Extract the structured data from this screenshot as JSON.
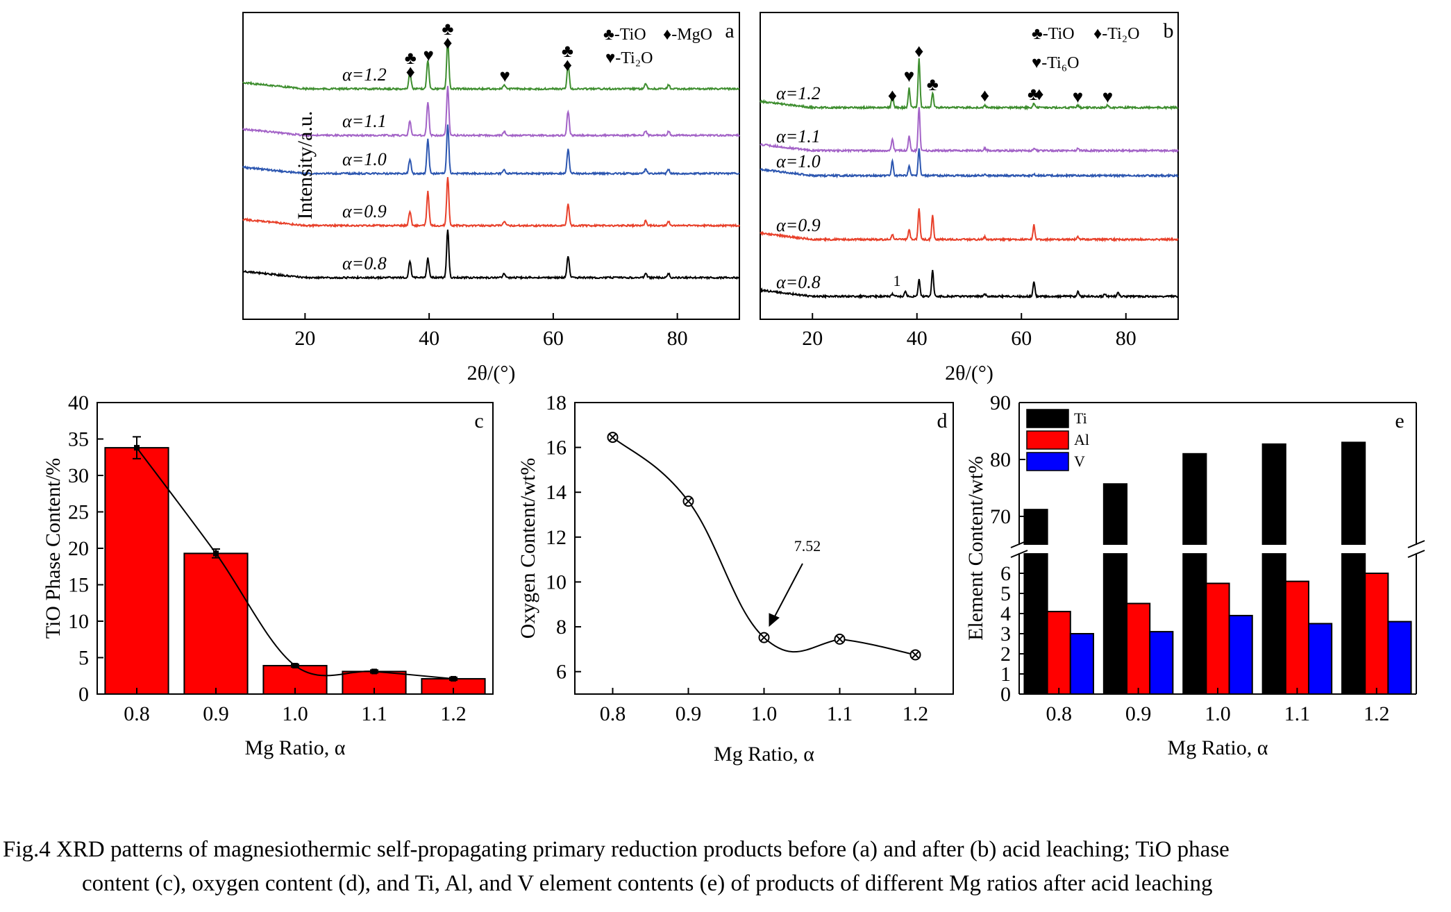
{
  "panels": {
    "a": {
      "letter": "a",
      "legend": [
        {
          "symbol": "♣",
          "text": "-TiO"
        },
        {
          "symbol": "♦",
          "text": "-MgO"
        },
        {
          "symbol": "♥",
          "text": "-Ti₂O"
        }
      ],
      "ylabel": "Intensity/a.u.",
      "xlabel": "2θ/(°)",
      "xticks": [
        "20",
        "40",
        "60",
        "80"
      ],
      "trace_labels": [
        "α=1.2",
        "α=1.1",
        "α=1.0",
        "α=0.9",
        "α=0.8"
      ],
      "peak_markers": [
        "♣",
        "♦",
        "♥",
        "♣",
        "♦",
        "♥",
        "♣",
        "♦"
      ]
    },
    "b": {
      "letter": "b",
      "legend": [
        {
          "symbol": "♣",
          "text": "-TiO"
        },
        {
          "symbol": "♦",
          "text": "-Ti₂O"
        },
        {
          "symbol": "♥",
          "text": "-Ti₆O"
        }
      ],
      "xlabel": "2θ/(°)",
      "xticks": [
        "20",
        "40",
        "60",
        "80"
      ],
      "trace_labels": [
        "α=1.2",
        "α=1.1",
        "α=1.0",
        "α=0.9",
        "α=0.8"
      ],
      "peak_markers": [
        "♦",
        "♥",
        "♦",
        "♣",
        "♦",
        "♣",
        "♦",
        "♥",
        "♥"
      ],
      "annotation": "1"
    },
    "c": {
      "letter": "c",
      "ylabel": "TiO Phase Content/%",
      "xlabel": "Mg Ratio, α",
      "yticks": [
        "0",
        "5",
        "10",
        "15",
        "20",
        "25",
        "30",
        "35",
        "40"
      ],
      "xticks": [
        "0.8",
        "0.9",
        "1.0",
        "1.1",
        "1.2"
      ]
    },
    "d": {
      "letter": "d",
      "ylabel": "Oxygen Content/wt%",
      "xlabel": "Mg Ratio, α",
      "yticks": [
        "6",
        "8",
        "10",
        "12",
        "14",
        "16",
        "18"
      ],
      "xticks": [
        "0.8",
        "0.9",
        "1.0",
        "1.1",
        "1.2"
      ],
      "annotation": "7.52"
    },
    "e": {
      "letter": "e",
      "ylabel": "Element Content/wt%",
      "xlabel": "Mg Ratio, α",
      "yticks_upper": [
        "70",
        "80",
        "90"
      ],
      "yticks_lower": [
        "0",
        "1",
        "2",
        "3",
        "4",
        "5",
        "6"
      ],
      "xticks": [
        "0.8",
        "0.9",
        "1.0",
        "1.1",
        "1.2"
      ],
      "legend": [
        "Ti",
        "Al",
        "V"
      ]
    }
  },
  "colors": {
    "red": "#ff0000",
    "blue": "#0000ff",
    "black": "#000000",
    "trace_a": [
      "#3e8e2f",
      "#a363c7",
      "#2c56b0",
      "#e8402a",
      "#000000"
    ],
    "trace_b": [
      "#3e8e2f",
      "#a363c7",
      "#2c56b0",
      "#e8402a",
      "#000000"
    ]
  },
  "chart_data": [
    {
      "type": "line",
      "panel": "a",
      "title": "",
      "xlabel": "2θ/(°)",
      "ylabel": "Intensity/a.u.",
      "xlim": [
        10,
        90
      ],
      "series": [
        {
          "name": "α=1.2",
          "peaks": [
            [
              36.9,
              0.35
            ],
            [
              39.8,
              0.6
            ],
            [
              43.0,
              1.0
            ],
            [
              52.1,
              0.08
            ],
            [
              62.4,
              0.5
            ],
            [
              74.9,
              0.1
            ],
            [
              78.6,
              0.08
            ]
          ]
        },
        {
          "name": "α=1.1",
          "peaks": [
            [
              36.9,
              0.3
            ],
            [
              39.8,
              0.7
            ],
            [
              43.0,
              1.0
            ],
            [
              52.1,
              0.08
            ],
            [
              62.4,
              0.5
            ],
            [
              74.9,
              0.1
            ],
            [
              78.6,
              0.08
            ]
          ]
        },
        {
          "name": "α=1.0",
          "peaks": [
            [
              36.9,
              0.3
            ],
            [
              39.8,
              0.7
            ],
            [
              43.0,
              1.0
            ],
            [
              52.1,
              0.08
            ],
            [
              62.4,
              0.5
            ],
            [
              74.9,
              0.1
            ],
            [
              78.6,
              0.08
            ]
          ]
        },
        {
          "name": "α=0.9",
          "peaks": [
            [
              36.9,
              0.3
            ],
            [
              39.8,
              0.7
            ],
            [
              43.0,
              1.0
            ],
            [
              52.1,
              0.08
            ],
            [
              62.4,
              0.45
            ],
            [
              74.9,
              0.1
            ],
            [
              78.6,
              0.08
            ]
          ]
        },
        {
          "name": "α=0.8",
          "peaks": [
            [
              36.9,
              0.35
            ],
            [
              39.8,
              0.4
            ],
            [
              43.0,
              1.0
            ],
            [
              52.1,
              0.08
            ],
            [
              62.4,
              0.45
            ],
            [
              74.9,
              0.1
            ],
            [
              78.6,
              0.08
            ]
          ]
        }
      ]
    },
    {
      "type": "line",
      "panel": "b",
      "title": "",
      "xlabel": "2θ/(°)",
      "ylabel": "",
      "xlim": [
        10,
        90
      ],
      "series": [
        {
          "name": "α=1.2",
          "peaks": [
            [
              35.3,
              0.3
            ],
            [
              38.5,
              0.4
            ],
            [
              40.4,
              1.0
            ],
            [
              43.0,
              0.3
            ],
            [
              53.0,
              0.05
            ],
            [
              62.4,
              0.08
            ],
            [
              70.8,
              0.05
            ],
            [
              76.5,
              0.05
            ]
          ]
        },
        {
          "name": "α=1.1",
          "peaks": [
            [
              35.3,
              0.25
            ],
            [
              38.5,
              0.3
            ],
            [
              40.4,
              0.9
            ],
            [
              53.0,
              0.05
            ],
            [
              62.4,
              0.05
            ],
            [
              70.8,
              0.05
            ]
          ]
        },
        {
          "name": "α=1.0",
          "peaks": [
            [
              35.3,
              0.3
            ],
            [
              38.5,
              0.2
            ],
            [
              40.4,
              0.55
            ],
            [
              53.0,
              0.03
            ],
            [
              62.4,
              0.03
            ]
          ]
        },
        {
          "name": "α=0.9",
          "peaks": [
            [
              35.3,
              0.1
            ],
            [
              38.5,
              0.2
            ],
            [
              40.4,
              0.65
            ],
            [
              43.0,
              0.5
            ],
            [
              53.0,
              0.05
            ],
            [
              62.4,
              0.3
            ],
            [
              70.8,
              0.05
            ]
          ]
        },
        {
          "name": "α=0.8",
          "peaks": [
            [
              35.3,
              0.05
            ],
            [
              37.8,
              0.1
            ],
            [
              40.4,
              0.35
            ],
            [
              43.0,
              0.55
            ],
            [
              53.0,
              0.05
            ],
            [
              62.4,
              0.3
            ],
            [
              70.8,
              0.1
            ],
            [
              76.0,
              0.05
            ],
            [
              78.5,
              0.08
            ]
          ]
        }
      ]
    },
    {
      "type": "bar",
      "panel": "c",
      "title": "",
      "xlabel": "Mg Ratio, α",
      "ylabel": "TiO Phase Content/%",
      "categories": [
        "0.8",
        "0.9",
        "1.0",
        "1.1",
        "1.2"
      ],
      "values": [
        33.8,
        19.3,
        3.9,
        3.1,
        2.1
      ],
      "errors": [
        1.5,
        0.6,
        0.2,
        0.2,
        0.2
      ],
      "ylim": [
        0,
        40
      ]
    },
    {
      "type": "line",
      "panel": "d",
      "title": "",
      "xlabel": "Mg Ratio, α",
      "ylabel": "Oxygen Content/wt%",
      "x": [
        0.8,
        0.9,
        1.0,
        1.1,
        1.2
      ],
      "values": [
        16.45,
        13.6,
        7.52,
        7.45,
        6.75
      ],
      "xlim": [
        0.75,
        1.25
      ],
      "ylim": [
        5,
        18
      ]
    },
    {
      "type": "bar",
      "panel": "e",
      "title": "",
      "xlabel": "Mg Ratio, α",
      "ylabel": "Element Content/wt%",
      "categories": [
        "0.8",
        "0.9",
        "1.0",
        "1.1",
        "1.2"
      ],
      "series": [
        {
          "name": "Ti",
          "values": [
            71.2,
            75.7,
            81.0,
            82.7,
            83.0
          ]
        },
        {
          "name": "Al",
          "values": [
            4.1,
            4.5,
            5.5,
            5.6,
            6.0
          ]
        },
        {
          "name": "V",
          "values": [
            3.0,
            3.1,
            3.9,
            3.5,
            3.6
          ]
        }
      ],
      "ylim_lower": [
        0,
        7
      ],
      "ylim_upper": [
        65,
        90
      ],
      "axis_break": true
    }
  ],
  "caption": {
    "line1": "Fig.4   XRD patterns of magnesiothermic self-propagating primary reduction products before (a) and after (b) acid leaching; TiO phase",
    "line2": "content (c), oxygen content (d), and Ti, Al, and V element contents (e) of products of different Mg ratios after acid leaching"
  }
}
